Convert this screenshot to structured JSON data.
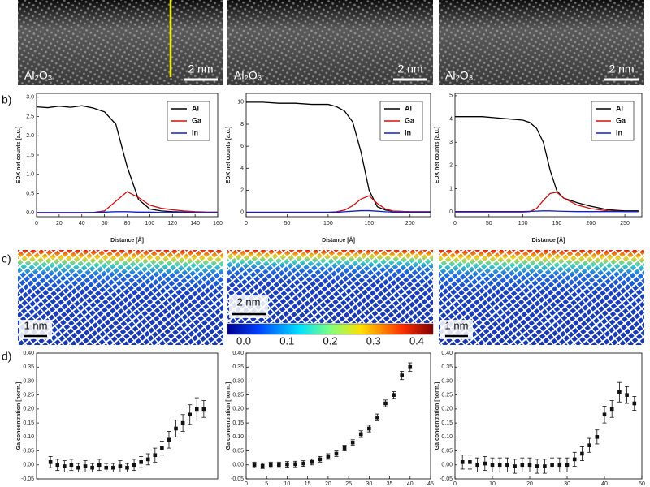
{
  "panel_labels": {
    "b": "b)",
    "c": "c)",
    "d": "d)"
  },
  "tem_images": [
    {
      "label": "Al₂O₃",
      "scale_bar": "2 nm"
    },
    {
      "label": "Al₂O₃",
      "scale_bar": "2 nm"
    },
    {
      "label": "Al₂O₃",
      "scale_bar": "2 nm"
    }
  ],
  "maps": {
    "scale_bars": [
      "1 nm",
      "2 nm",
      "1 nm"
    ],
    "colorbar_ticks": [
      "0.0",
      "0.1",
      "0.2",
      "0.3",
      "0.4"
    ]
  },
  "chart_data": [
    {
      "type": "line",
      "x_label": "Distance [Å]",
      "y_label": "EDX net counts [a.u.]",
      "legend": "upper right",
      "x": [
        0,
        10,
        20,
        30,
        40,
        50,
        60,
        70,
        80,
        90,
        100,
        110,
        120,
        130,
        140,
        150,
        160
      ],
      "series": [
        {
          "name": "Al",
          "color": "#000000",
          "values": [
            2.75,
            2.73,
            2.77,
            2.74,
            2.78,
            2.72,
            2.62,
            2.3,
            1.2,
            0.35,
            0.1,
            0.05,
            0.03,
            0.02,
            0.02,
            0.01,
            0.01
          ]
        },
        {
          "name": "Ga",
          "color": "#d01010",
          "values": [
            0,
            0,
            0,
            0,
            0,
            0.01,
            0.05,
            0.3,
            0.55,
            0.4,
            0.2,
            0.12,
            0.08,
            0.05,
            0.03,
            0.02,
            0.02
          ]
        },
        {
          "name": "In",
          "color": "#1020c0",
          "values": [
            0.01,
            0.01,
            0.01,
            0.01,
            0.01,
            0.01,
            0.02,
            0.03,
            0.03,
            0.02,
            0.02,
            0.01,
            0.01,
            0.01,
            0.01,
            0.01,
            0.01
          ]
        }
      ],
      "xlim": [
        0,
        160
      ],
      "xticks": [
        0,
        20,
        40,
        60,
        80,
        100,
        120,
        140,
        160
      ],
      "ylim": [
        -0.1,
        3.1
      ],
      "yticks": [
        {
          "value": 0,
          "label": "0.0"
        },
        {
          "value": 0.5,
          "label": "0.5"
        },
        {
          "value": 1,
          "label": "1.0"
        },
        {
          "value": 1.5,
          "label": "1.5"
        },
        {
          "value": 2,
          "label": "2.0"
        },
        {
          "value": 2.5,
          "label": "2.5"
        },
        {
          "value": 3,
          "label": "3.0"
        }
      ]
    },
    {
      "type": "line",
      "x_label": "Distance [Å]",
      "y_label": "EDX net counts [a.u.]",
      "legend": "upper right",
      "x": [
        0,
        20,
        40,
        60,
        80,
        100,
        110,
        120,
        130,
        140,
        150,
        160,
        170,
        180,
        200,
        225
      ],
      "series": [
        {
          "name": "Al",
          "color": "#000000",
          "values": [
            10.0,
            10.0,
            9.9,
            9.9,
            9.8,
            9.8,
            9.6,
            9.2,
            8.2,
            5.5,
            2.0,
            0.5,
            0.2,
            0.1,
            0.05,
            0.05
          ]
        },
        {
          "name": "Ga",
          "color": "#d01010",
          "values": [
            0,
            0,
            0,
            0,
            0,
            0,
            0.05,
            0.2,
            0.6,
            1.2,
            1.5,
            0.8,
            0.3,
            0.1,
            0.05,
            0.05
          ]
        },
        {
          "name": "In",
          "color": "#1020c0",
          "values": [
            0,
            0,
            0,
            0,
            0,
            0,
            0,
            0.05,
            0.1,
            0.15,
            0.15,
            0.1,
            0.05,
            0.02,
            0,
            0
          ]
        }
      ],
      "xlim": [
        0,
        225
      ],
      "xticks": [
        0,
        50,
        100,
        150,
        200
      ],
      "ylim": [
        -0.4,
        10.8
      ],
      "yticks": [
        0,
        2,
        4,
        6,
        8,
        10
      ]
    },
    {
      "type": "line",
      "x_label": "Distance [Å]",
      "y_label": "EDX net counts [a.u.]",
      "legend": "upper right",
      "x": [
        0,
        20,
        40,
        60,
        80,
        100,
        110,
        120,
        130,
        140,
        150,
        160,
        180,
        200,
        225,
        250,
        270
      ],
      "series": [
        {
          "name": "Al",
          "color": "#000000",
          "values": [
            4.1,
            4.1,
            4.1,
            4.05,
            4.0,
            3.95,
            3.85,
            3.6,
            3.0,
            1.8,
            0.9,
            0.6,
            0.4,
            0.25,
            0.1,
            0.05,
            0.05
          ]
        },
        {
          "name": "Ga",
          "color": "#d01010",
          "values": [
            0,
            0,
            0,
            0,
            0,
            0,
            0.02,
            0.15,
            0.5,
            0.8,
            0.85,
            0.6,
            0.3,
            0.15,
            0.05,
            0.02,
            0.02
          ]
        },
        {
          "name": "In",
          "color": "#1020c0",
          "values": [
            0.02,
            0.02,
            0.02,
            0.02,
            0.02,
            0.02,
            0.03,
            0.04,
            0.05,
            0.05,
            0.04,
            0.03,
            0.02,
            0.02,
            0.02,
            0.02,
            0.02
          ]
        }
      ],
      "xlim": [
        0,
        275
      ],
      "xticks": [
        0,
        50,
        100,
        150,
        200,
        250
      ],
      "ylim": [
        -0.2,
        5.1
      ],
      "yticks": [
        0,
        1,
        2,
        3,
        4,
        5
      ]
    },
    {
      "type": "scatter",
      "y_label": "Ga concentration [norm.]",
      "x": [
        1,
        2,
        3,
        4,
        5,
        6,
        7,
        8,
        9,
        10,
        11,
        12,
        13,
        14,
        15,
        16,
        17,
        18,
        19,
        20,
        21,
        22,
        23
      ],
      "series": [
        {
          "color": "#111111",
          "values": [
            0.01,
            0.0,
            -0.005,
            0.0,
            -0.01,
            -0.005,
            -0.01,
            0.0,
            -0.01,
            -0.01,
            -0.005,
            -0.01,
            0.0,
            0.01,
            0.02,
            0.035,
            0.06,
            0.09,
            0.13,
            0.15,
            0.18,
            0.2,
            0.2
          ],
          "errors": [
            0.02,
            0.02,
            0.02,
            0.02,
            0.015,
            0.02,
            0.015,
            0.02,
            0.015,
            0.015,
            0.02,
            0.015,
            0.02,
            0.02,
            0.02,
            0.025,
            0.025,
            0.03,
            0.03,
            0.03,
            0.035,
            0.04,
            0.03
          ]
        }
      ],
      "xlim": [
        -1,
        25
      ],
      "ylim": [
        -0.05,
        0.4
      ],
      "yticks": [
        {
          "value": -0.05,
          "label": "-0.05"
        },
        {
          "value": 0,
          "label": "0.00"
        },
        {
          "value": 0.05,
          "label": "0.05"
        },
        {
          "value": 0.1,
          "label": "0.10"
        },
        {
          "value": 0.15,
          "label": "0.15"
        },
        {
          "value": 0.2,
          "label": "0.20"
        },
        {
          "value": 0.25,
          "label": "0.25"
        },
        {
          "value": 0.3,
          "label": "0.30"
        },
        {
          "value": 0.35,
          "label": "0.35"
        },
        {
          "value": 0.4,
          "label": "0.40"
        }
      ]
    },
    {
      "type": "scatter",
      "y_label": "Ga concentration [norm.]",
      "x": [
        2,
        4,
        6,
        8,
        10,
        12,
        14,
        16,
        18,
        20,
        22,
        24,
        26,
        28,
        30,
        32,
        34,
        36,
        38,
        40
      ],
      "series": [
        {
          "color": "#111111",
          "values": [
            0.0,
            -0.003,
            0.0,
            0.0,
            0.002,
            0.003,
            0.005,
            0.01,
            0.02,
            0.03,
            0.04,
            0.06,
            0.08,
            0.11,
            0.13,
            0.17,
            0.22,
            0.25,
            0.32,
            0.35
          ],
          "errors": [
            0.01,
            0.01,
            0.01,
            0.01,
            0.01,
            0.01,
            0.01,
            0.01,
            0.01,
            0.01,
            0.01,
            0.01,
            0.01,
            0.012,
            0.012,
            0.012,
            0.012,
            0.012,
            0.015,
            0.015
          ]
        }
      ],
      "xlim": [
        0,
        45
      ],
      "xticks": [
        0,
        5,
        10,
        15,
        20,
        25,
        30,
        35,
        40,
        45
      ],
      "ylim": [
        -0.05,
        0.4
      ],
      "yticks": [
        {
          "value": -0.05,
          "label": "-0.05"
        },
        {
          "value": 0,
          "label": "0.00"
        },
        {
          "value": 0.05,
          "label": "0.05"
        },
        {
          "value": 0.1,
          "label": "0.10"
        },
        {
          "value": 0.15,
          "label": "0.15"
        },
        {
          "value": 0.2,
          "label": "0.20"
        },
        {
          "value": 0.25,
          "label": "0.25"
        },
        {
          "value": 0.3,
          "label": "0.30"
        },
        {
          "value": 0.35,
          "label": "0.35"
        },
        {
          "value": 0.4,
          "label": "0.40"
        }
      ]
    },
    {
      "type": "scatter",
      "y_label": "Ga concentration [norm.]",
      "x": [
        2,
        4,
        6,
        8,
        10,
        12,
        14,
        16,
        18,
        20,
        22,
        24,
        26,
        28,
        30,
        32,
        34,
        36,
        38,
        40,
        42,
        44,
        46,
        48
      ],
      "series": [
        {
          "color": "#111111",
          "values": [
            0.01,
            0.01,
            0.0,
            0.005,
            0.0,
            0.0,
            0.0,
            -0.005,
            0.0,
            0.0,
            -0.005,
            -0.005,
            0.0,
            0.0,
            0.0,
            0.02,
            0.04,
            0.07,
            0.1,
            0.18,
            0.2,
            0.26,
            0.25,
            0.22
          ],
          "errors": [
            0.025,
            0.025,
            0.025,
            0.025,
            0.025,
            0.025,
            0.025,
            0.025,
            0.025,
            0.025,
            0.025,
            0.025,
            0.025,
            0.025,
            0.025,
            0.025,
            0.025,
            0.025,
            0.025,
            0.03,
            0.03,
            0.035,
            0.03,
            0.025
          ]
        }
      ],
      "xlim": [
        0,
        50
      ],
      "xticks": [
        0,
        10,
        20,
        30,
        40,
        50
      ],
      "ylim": [
        -0.05,
        0.4
      ],
      "yticks": [
        {
          "value": -0.05,
          "label": "-0.05"
        },
        {
          "value": 0,
          "label": "0.00"
        },
        {
          "value": 0.05,
          "label": "0.05"
        },
        {
          "value": 0.1,
          "label": "0.10"
        },
        {
          "value": 0.15,
          "label": "0.15"
        },
        {
          "value": 0.2,
          "label": "0.20"
        },
        {
          "value": 0.25,
          "label": "0.25"
        },
        {
          "value": 0.3,
          "label": "0.30"
        },
        {
          "value": 0.35,
          "label": "0.35"
        },
        {
          "value": 0.4,
          "label": "0.40"
        }
      ]
    }
  ]
}
